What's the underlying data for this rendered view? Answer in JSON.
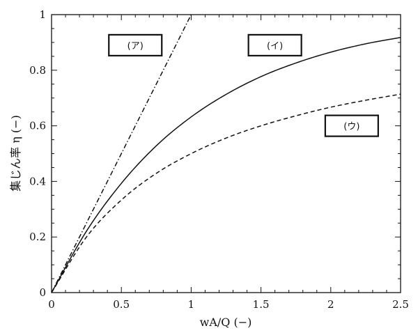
{
  "chart_data": {
    "type": "line",
    "title": "",
    "xlabel": "wA/Q (−)",
    "ylabel": "集じん率 η (−)",
    "xlim": [
      0,
      2.5
    ],
    "ylim": [
      0,
      1
    ],
    "xticks": [
      "0",
      "0.5",
      "1",
      "1.5",
      "2",
      "2.5"
    ],
    "yticks": [
      "0",
      "0.2",
      "0.4",
      "0.6",
      "0.8",
      "1"
    ],
    "grid": false,
    "series": [
      {
        "name": "(ア)",
        "style": "dash-dot",
        "x": [
          0,
          0.25,
          0.5,
          0.75,
          1.0
        ],
        "y": [
          0,
          0.25,
          0.5,
          0.75,
          1.0
        ]
      },
      {
        "name": "(イ)",
        "style": "solid",
        "x": [
          0,
          0.25,
          0.5,
          0.75,
          1.0,
          1.25,
          1.5,
          1.75,
          2.0,
          2.25,
          2.5
        ],
        "y": [
          0,
          0.221,
          0.393,
          0.528,
          0.632,
          0.713,
          0.777,
          0.826,
          0.865,
          0.895,
          0.918
        ]
      },
      {
        "name": "(ウ)",
        "style": "dashed",
        "x": [
          0,
          0.25,
          0.5,
          0.75,
          1.0,
          1.25,
          1.5,
          1.75,
          2.0,
          2.25,
          2.5
        ],
        "y": [
          0,
          0.2,
          0.333,
          0.429,
          0.5,
          0.556,
          0.6,
          0.636,
          0.667,
          0.692,
          0.714
        ]
      }
    ],
    "annotations": [
      {
        "text": "(ア)",
        "x": 0.6,
        "y": 0.89
      },
      {
        "text": "(イ)",
        "x": 1.6,
        "y": 0.89
      },
      {
        "text": "(ウ)",
        "x": 2.15,
        "y": 0.6
      }
    ]
  }
}
